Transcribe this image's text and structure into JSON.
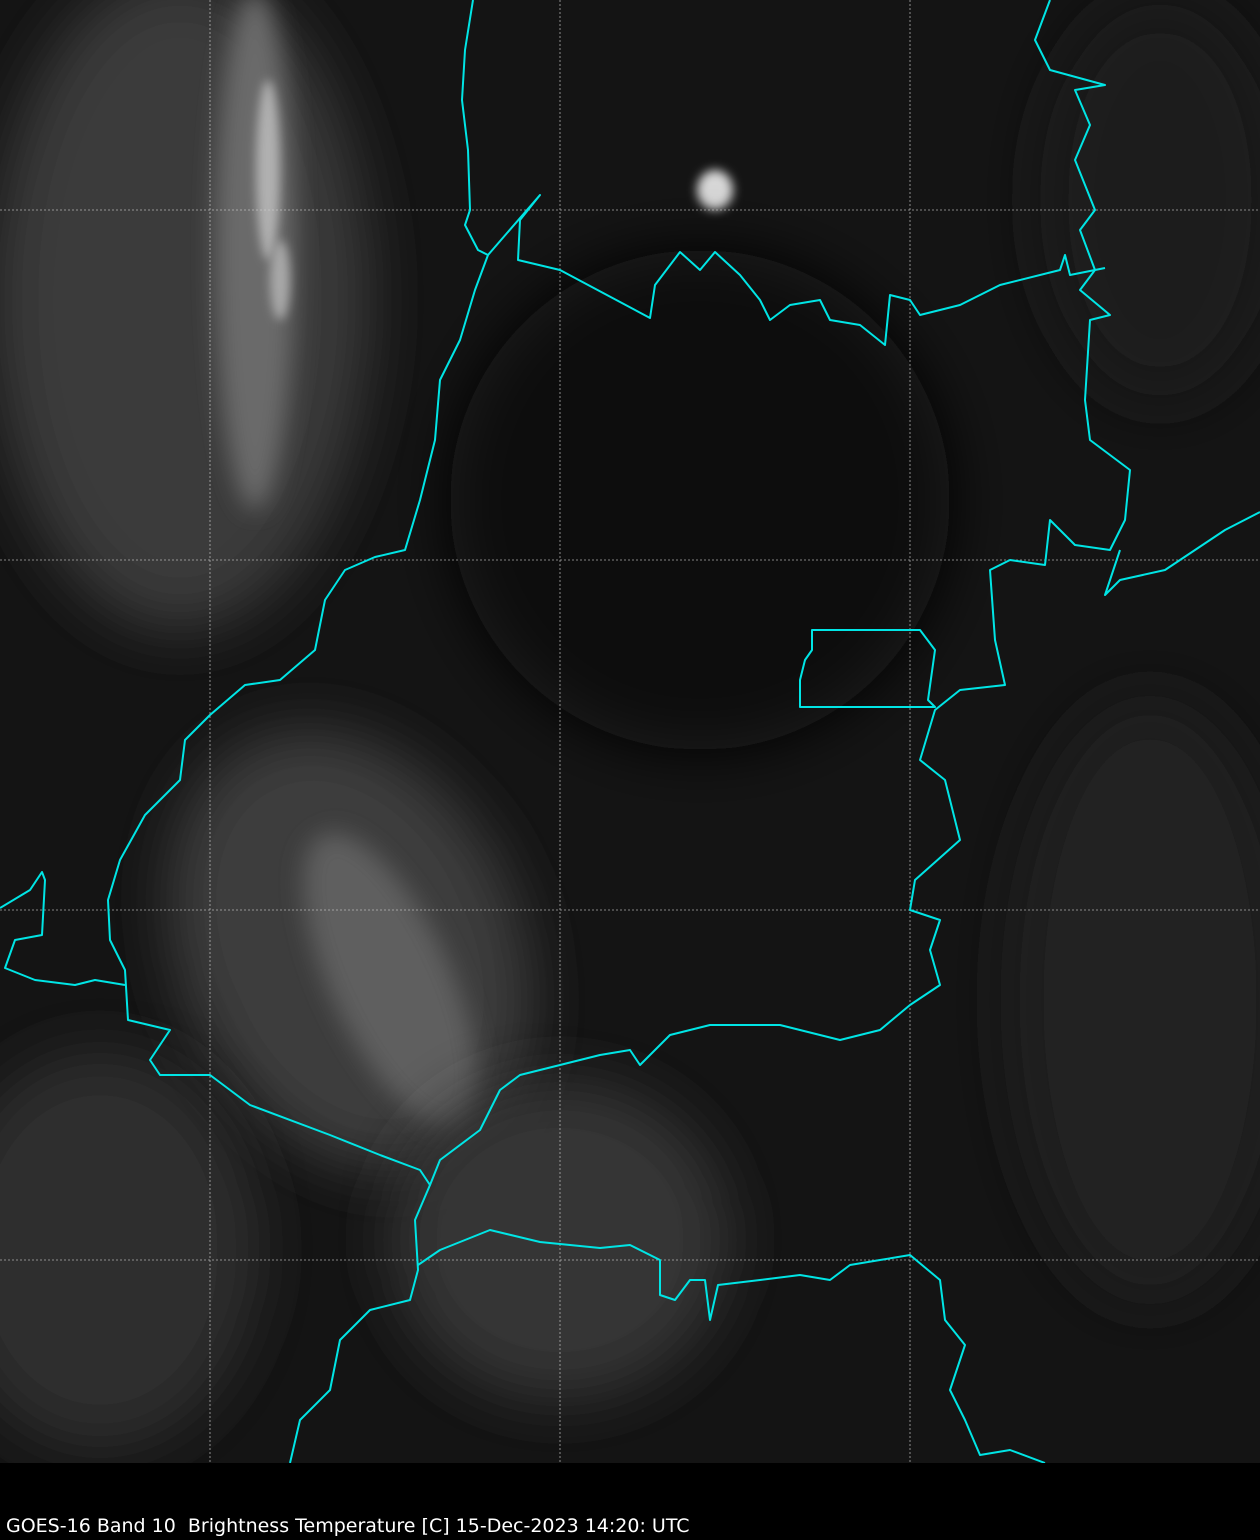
{
  "caption": "GOES-16 Band 10  Brightness Temperature [C] 15-Dec-2023 14:20: UTC",
  "colors": {
    "background": "#000000",
    "imagery_base": "#141414",
    "border": "#00e5e5",
    "gridline": "#d0d0d0",
    "caption_text": "#ffffff"
  },
  "map": {
    "colormap": "grayscale",
    "gridlines": true,
    "boundaries": "political borders"
  }
}
